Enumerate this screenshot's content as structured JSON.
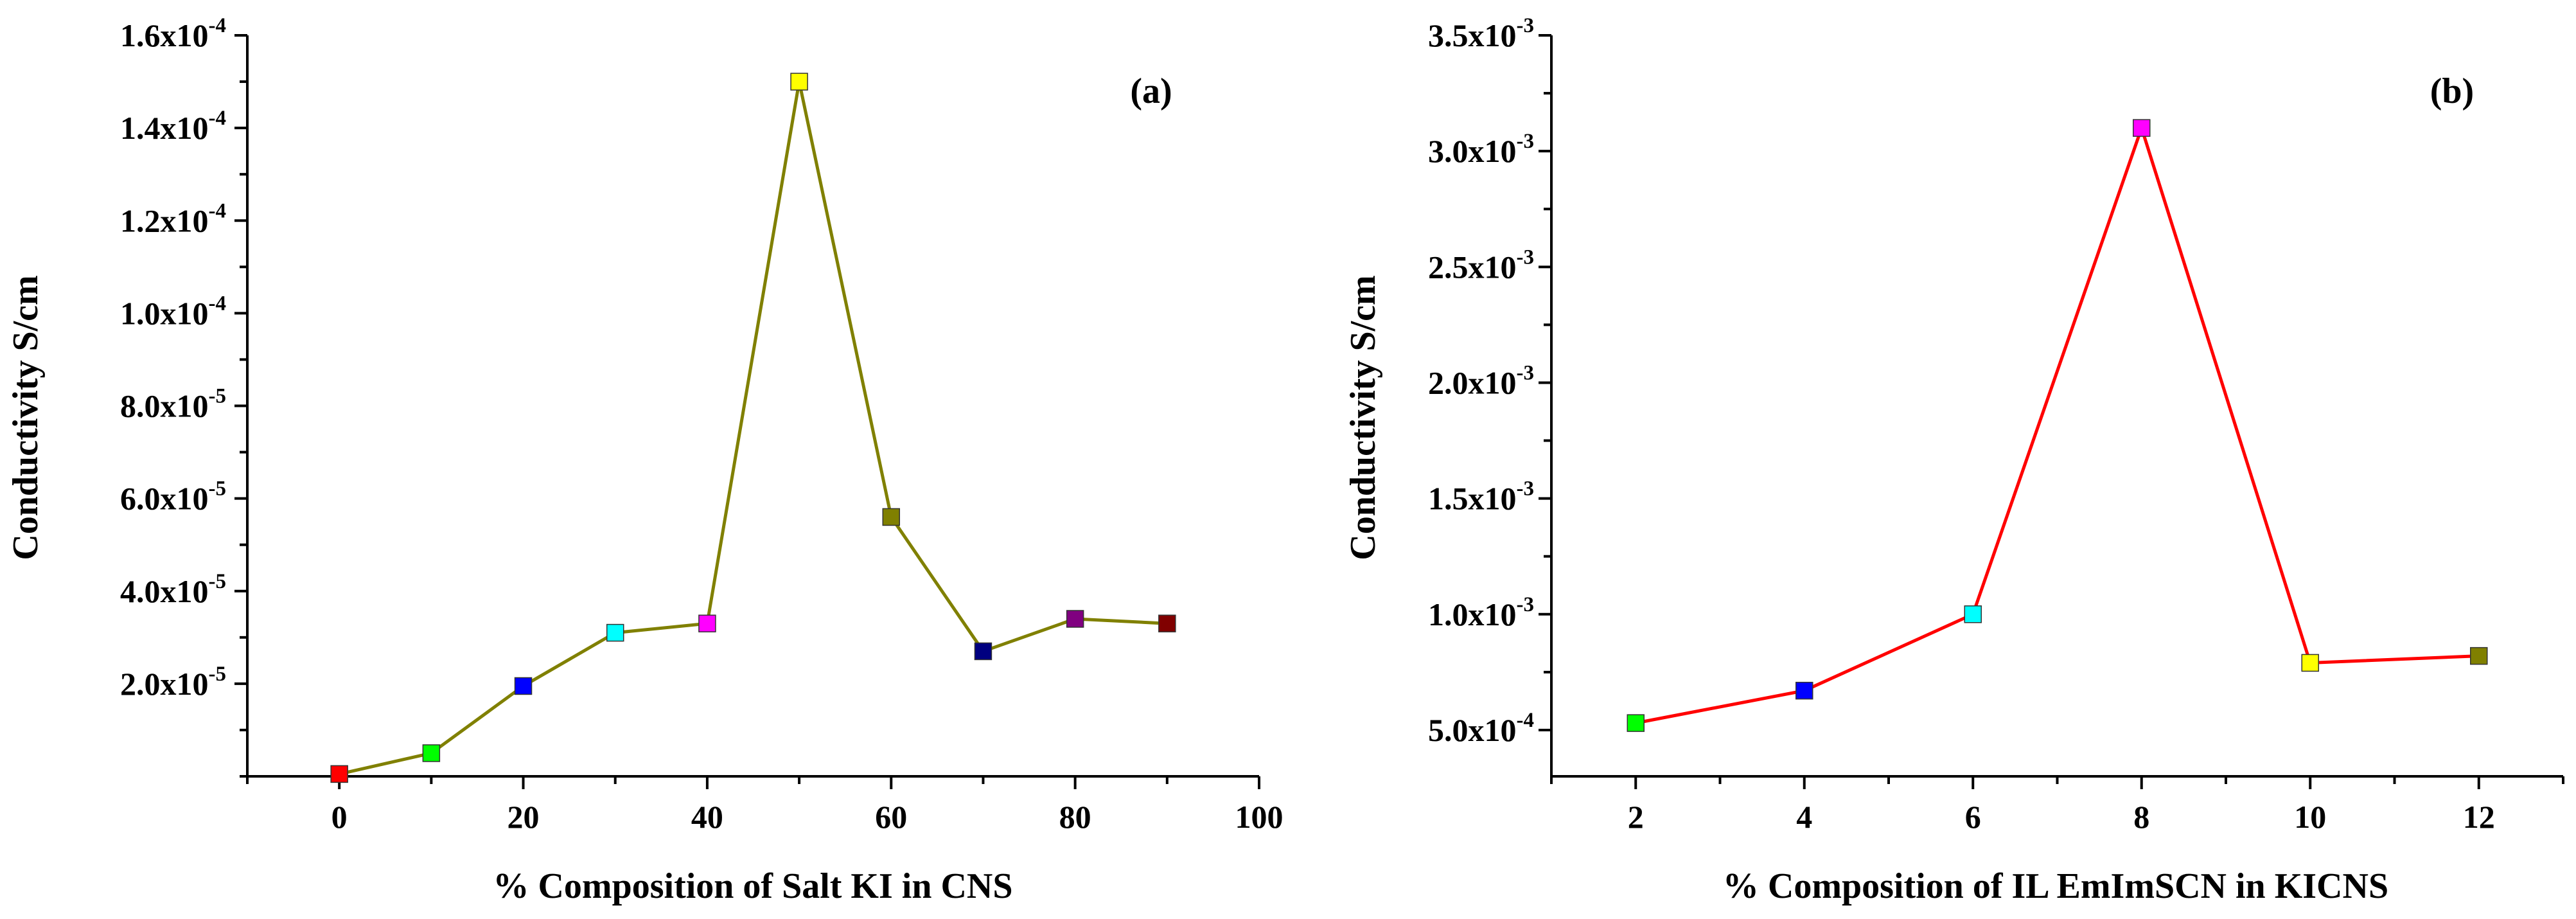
{
  "chart_data": [
    {
      "type": "line",
      "panel_label": "(a)",
      "xlabel": "% Composition of Salt KI in CNS",
      "ylabel": "Conductivity S/cm",
      "xlim": [
        -10,
        100
      ],
      "ylim": [
        0,
        0.00016
      ],
      "xticks": [
        0,
        20,
        40,
        60,
        80,
        100
      ],
      "xtick_labels": [
        "0",
        "20",
        "40",
        "60",
        "80",
        "100"
      ],
      "yticks": [
        2e-05,
        4e-05,
        6e-05,
        8e-05,
        0.0001,
        0.00012,
        0.00014,
        0.00016
      ],
      "ytick_labels": [
        {
          "mant": "2.0x10",
          "exp": "-5"
        },
        {
          "mant": "4.0x10",
          "exp": "-5"
        },
        {
          "mant": "6.0x10",
          "exp": "-5"
        },
        {
          "mant": "8.0x10",
          "exp": "-5"
        },
        {
          "mant": "1.0x10",
          "exp": "-4"
        },
        {
          "mant": "1.2x10",
          "exp": "-4"
        },
        {
          "mant": "1.4x10",
          "exp": "-4"
        },
        {
          "mant": "1.6x10",
          "exp": "-4"
        }
      ],
      "line_color": "#808000",
      "x": [
        0,
        10,
        20,
        30,
        40,
        50,
        60,
        70,
        80,
        90
      ],
      "y": [
        5e-07,
        5e-06,
        1.95e-05,
        3.1e-05,
        3.3e-05,
        0.00015,
        5.6e-05,
        2.7e-05,
        3.4e-05,
        3.3e-05
      ],
      "marker_colors": [
        "#ff0000",
        "#00ff00",
        "#0000ff",
        "#00ffff",
        "#ff00ff",
        "#ffff00",
        "#808000",
        "#000080",
        "#800080",
        "#800000"
      ]
    },
    {
      "type": "line",
      "panel_label": "(b)",
      "xlabel": "% Composition of IL EmImSCN in KICNS",
      "ylabel": "Conductivity S/cm",
      "xlim": [
        1,
        13
      ],
      "ylim": [
        0.0003,
        0.0035
      ],
      "xticks": [
        2,
        4,
        6,
        8,
        10,
        12
      ],
      "xtick_labels": [
        "2",
        "4",
        "6",
        "8",
        "10",
        "12"
      ],
      "yticks": [
        0.0005,
        0.001,
        0.0015,
        0.002,
        0.0025,
        0.003,
        0.0035
      ],
      "ytick_labels": [
        {
          "mant": "5.0x10",
          "exp": "-4"
        },
        {
          "mant": "1.0x10",
          "exp": "-3"
        },
        {
          "mant": "1.5x10",
          "exp": "-3"
        },
        {
          "mant": "2.0x10",
          "exp": "-3"
        },
        {
          "mant": "2.5x10",
          "exp": "-3"
        },
        {
          "mant": "3.0x10",
          "exp": "-3"
        },
        {
          "mant": "3.5x10",
          "exp": "-3"
        }
      ],
      "line_color": "#ff0000",
      "x": [
        2,
        4,
        6,
        8,
        10,
        12
      ],
      "y": [
        0.00053,
        0.00067,
        0.001,
        0.0031,
        0.00079,
        0.00082
      ],
      "marker_colors": [
        "#00ff00",
        "#0000ff",
        "#00ffff",
        "#ff00ff",
        "#ffff00",
        "#808000"
      ]
    }
  ]
}
